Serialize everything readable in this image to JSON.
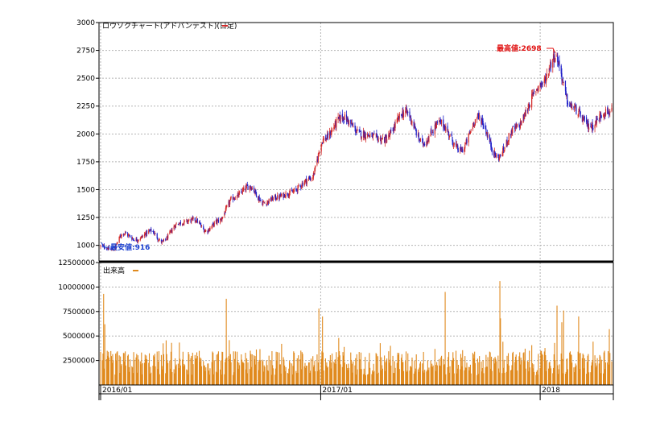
{
  "chart_data": {
    "type": "candlestick",
    "title": "ロウソクチャート(アドバンテスト)(日足)",
    "colors": {
      "up": "#d42a2a",
      "down": "#1f1fc8",
      "volume": "#e08a1e",
      "high_label": "#e01010",
      "low_label": "#1a3fd0",
      "grid": "#b4b4b4",
      "frame": "#000000"
    },
    "price_panel": {
      "ylim": [
        860,
        3000
      ],
      "y_ticks": [
        1000,
        1250,
        1500,
        1750,
        2000,
        2250,
        2500,
        2750,
        3000
      ],
      "y_tick_labels": [
        "1000",
        "1250",
        "1500",
        "1750",
        "2000",
        "2250",
        "2500",
        "2750",
        "3000"
      ],
      "high_label": "最高値:2698",
      "low_label": "最安値:916",
      "high_value": 2698,
      "low_value": 916,
      "trend_anchors": [
        {
          "date": "2016-01-04",
          "close": 990
        },
        {
          "date": "2016-01-20",
          "close": 960
        },
        {
          "date": "2016-02-08",
          "close": 1110
        },
        {
          "date": "2016-02-29",
          "close": 1050
        },
        {
          "date": "2016-03-25",
          "close": 1130
        },
        {
          "date": "2016-04-12",
          "close": 1030
        },
        {
          "date": "2016-05-10",
          "close": 1200
        },
        {
          "date": "2016-06-06",
          "close": 1230
        },
        {
          "date": "2016-06-24",
          "close": 1130
        },
        {
          "date": "2016-07-15",
          "close": 1220
        },
        {
          "date": "2016-08-10",
          "close": 1430
        },
        {
          "date": "2016-09-05",
          "close": 1530
        },
        {
          "date": "2016-09-28",
          "close": 1380
        },
        {
          "date": "2016-10-20",
          "close": 1430
        },
        {
          "date": "2016-11-10",
          "close": 1470
        },
        {
          "date": "2016-12-16",
          "close": 1600
        },
        {
          "date": "2017-01-06",
          "close": 1950
        },
        {
          "date": "2017-02-06",
          "close": 2150
        },
        {
          "date": "2017-03-10",
          "close": 2000
        },
        {
          "date": "2017-04-17",
          "close": 1950
        },
        {
          "date": "2017-05-22",
          "close": 2200
        },
        {
          "date": "2017-06-20",
          "close": 1920
        },
        {
          "date": "2017-07-18",
          "close": 2100
        },
        {
          "date": "2017-08-22",
          "close": 1850
        },
        {
          "date": "2017-09-20",
          "close": 2150
        },
        {
          "date": "2017-10-23",
          "close": 1790
        },
        {
          "date": "2017-11-20",
          "close": 2050
        },
        {
          "date": "2018-01-04",
          "close": 2450
        },
        {
          "date": "2018-01-26",
          "close": 2698
        },
        {
          "date": "2018-02-20",
          "close": 2250
        },
        {
          "date": "2018-03-26",
          "close": 2070
        },
        {
          "date": "2018-04-20",
          "close": 2200
        }
      ]
    },
    "volume_panel": {
      "title": "出来高",
      "ylim": [
        0,
        12500000
      ],
      "y_ticks": [
        2500000,
        5000000,
        7500000,
        10000000,
        12500000
      ],
      "y_tick_labels": [
        "2500000",
        "5000000",
        "7500000",
        "10000000",
        "12500000"
      ],
      "typical_range": [
        1000000,
        3500000
      ],
      "spikes": [
        {
          "date": "2016-01-06",
          "volume": 9300000
        },
        {
          "date": "2016-01-08",
          "volume": 6200000
        },
        {
          "date": "2016-04-28",
          "volume": 4300000
        },
        {
          "date": "2016-07-28",
          "volume": 8800000
        },
        {
          "date": "2016-10-28",
          "volume": 4200000
        },
        {
          "date": "2016-12-29",
          "volume": 7800000
        },
        {
          "date": "2017-01-04",
          "volume": 7000000
        },
        {
          "date": "2017-01-31",
          "volume": 4800000
        },
        {
          "date": "2017-04-27",
          "volume": 4000000
        },
        {
          "date": "2017-07-27",
          "volume": 9500000
        },
        {
          "date": "2017-10-26",
          "volume": 10600000
        },
        {
          "date": "2017-10-27",
          "volume": 6800000
        },
        {
          "date": "2018-01-29",
          "volume": 8100000
        },
        {
          "date": "2018-02-06",
          "volume": 6400000
        },
        {
          "date": "2018-02-09",
          "volume": 7600000
        },
        {
          "date": "2018-03-06",
          "volume": 7000000
        },
        {
          "date": "2018-04-26",
          "volume": 5700000
        }
      ]
    },
    "x_axis": {
      "range": [
        "2016-01-01",
        "2018-04-30"
      ],
      "tick_dates": [
        "2016-01-01",
        "2017-01-01",
        "2018-01-01"
      ],
      "tick_labels": [
        "2016/01",
        "2017/01",
        "2018"
      ]
    }
  }
}
